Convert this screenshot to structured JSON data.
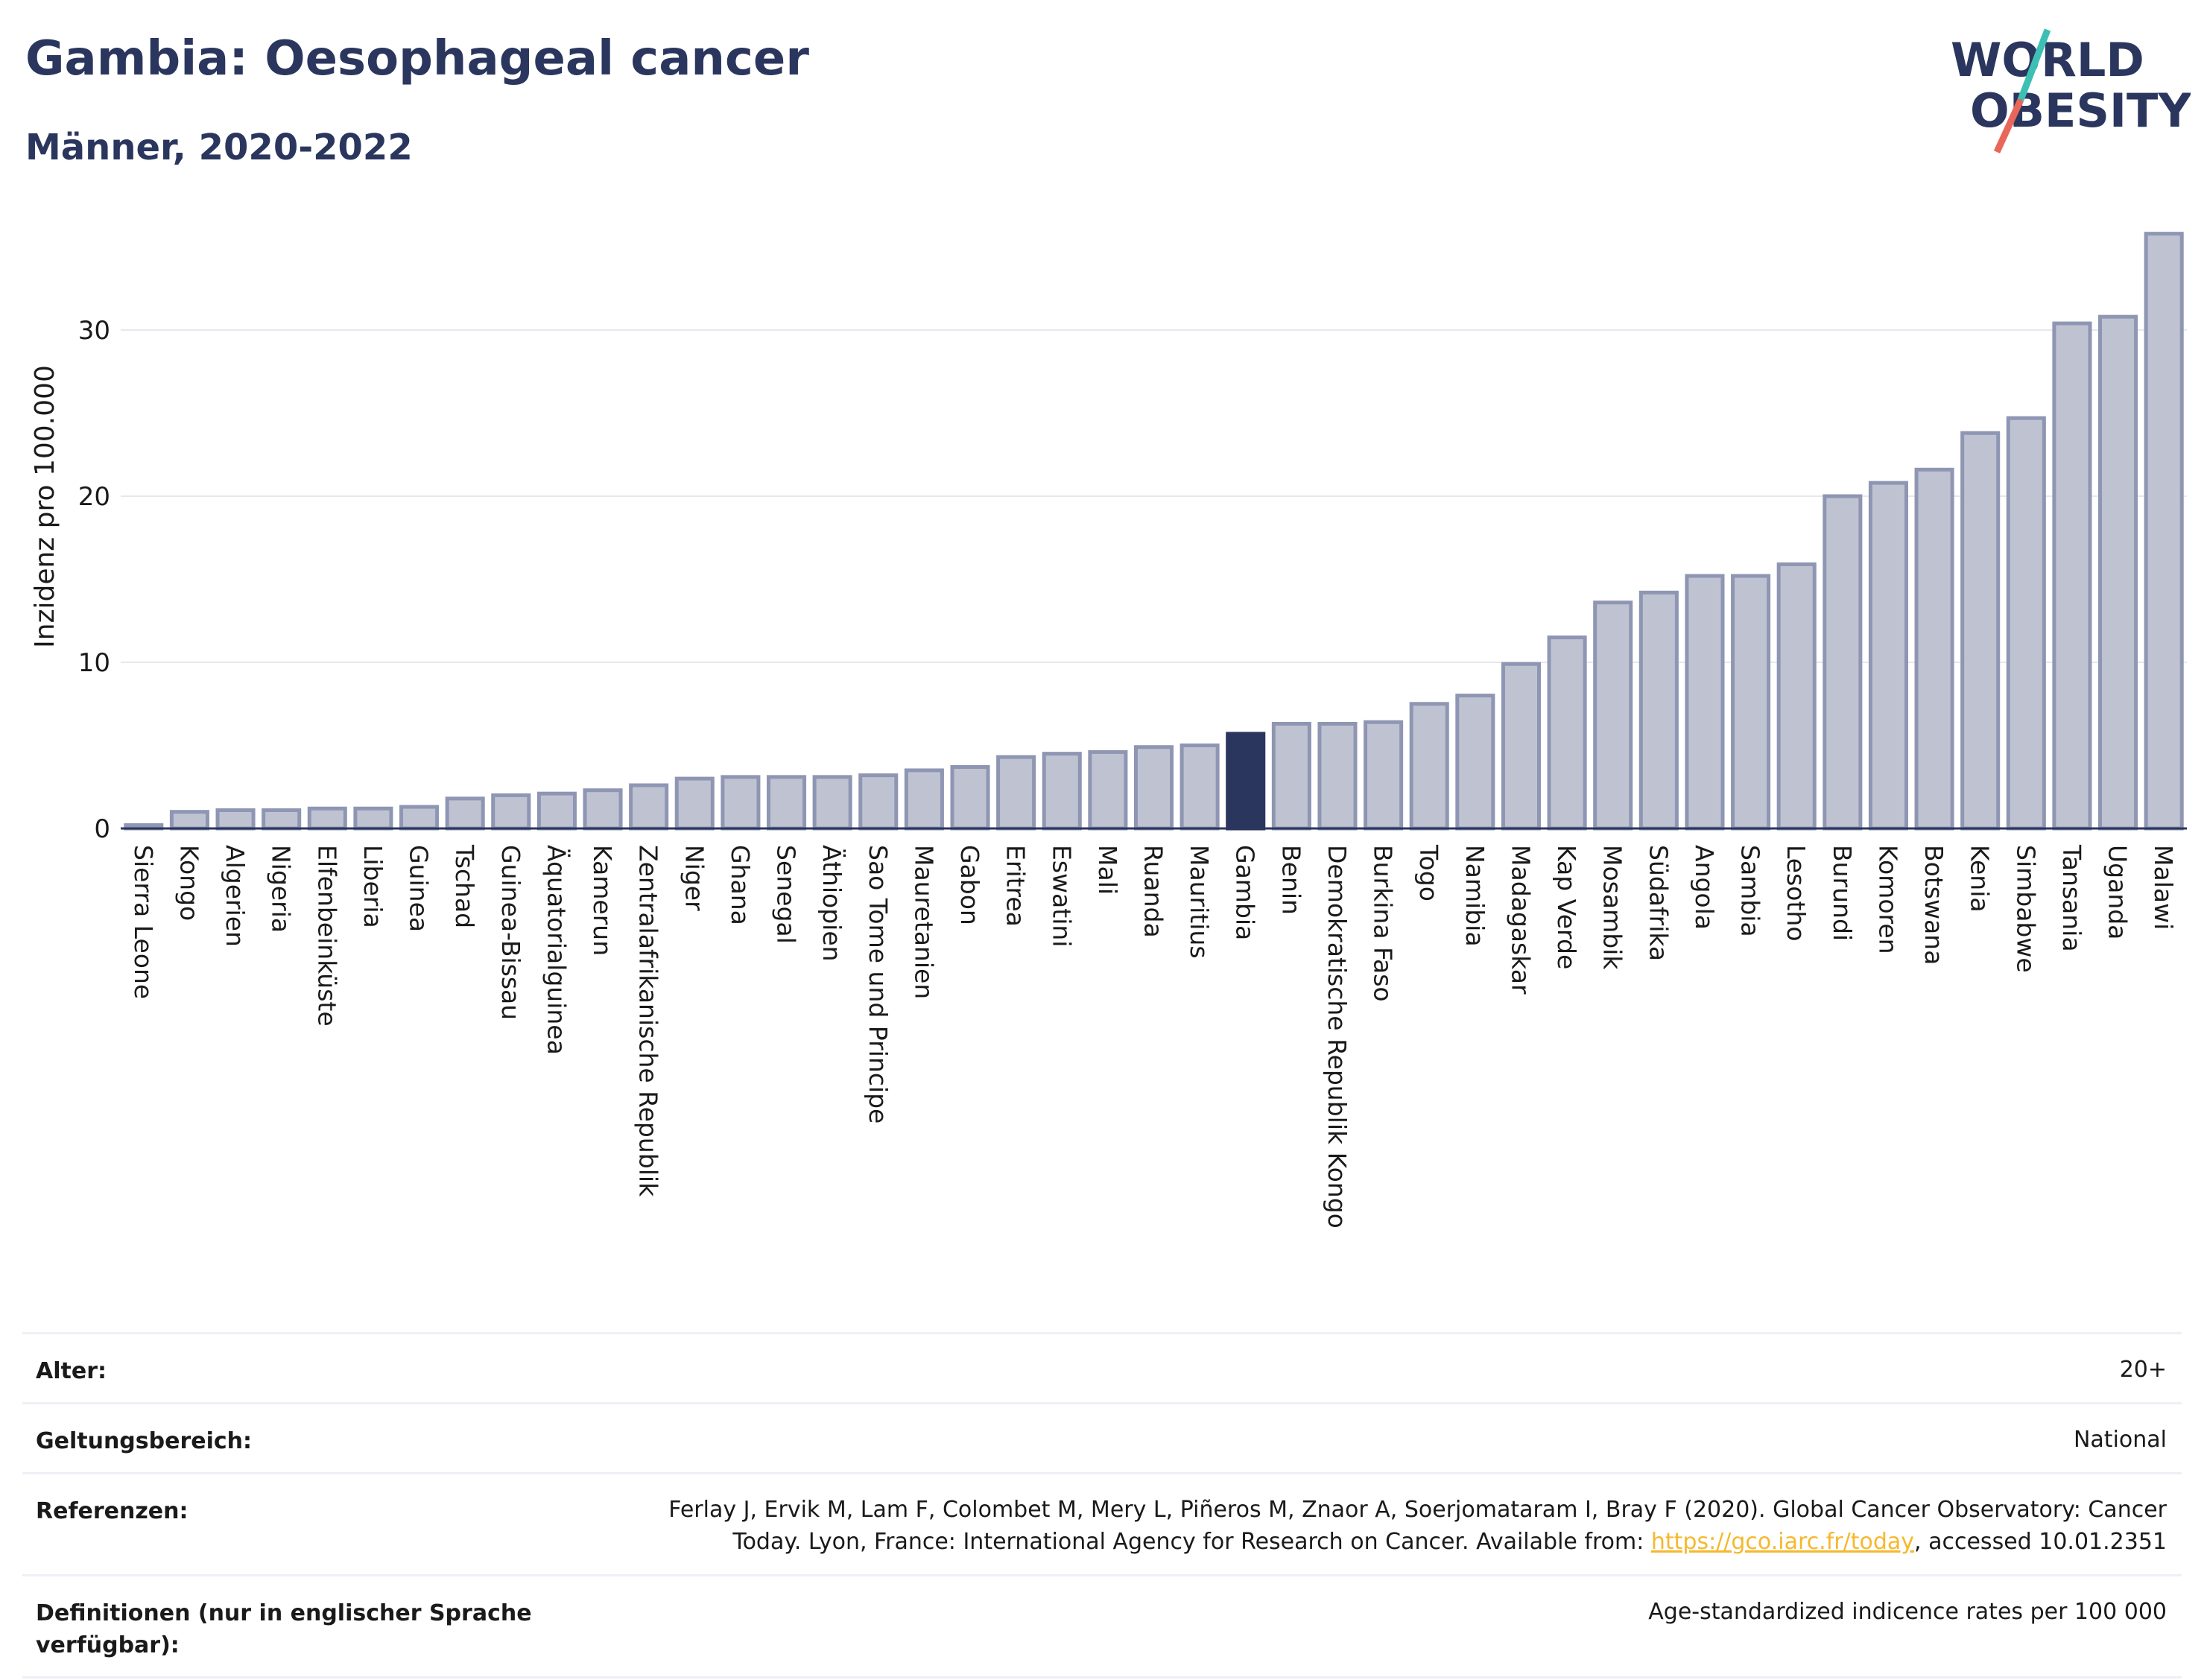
{
  "header": {
    "title": "Gambia: Oesophageal cancer",
    "subtitle": "Männer, 2020-2022"
  },
  "logo": {
    "line1": "WORLD",
    "line2": "OBESITY",
    "slash_colors": [
      "#3dbfb5",
      "#e8665a"
    ]
  },
  "colors": {
    "bar": "#bfc3d1",
    "bar_stroke": "#8e96b3",
    "highlight": "#2b365e",
    "grid": "#e6e8ee",
    "axis": "#2b365e"
  },
  "chart_data": {
    "type": "bar",
    "ylabel": "Inzidenz pro 100.000",
    "ylim": [
      0,
      36
    ],
    "yticks": [
      0,
      10,
      20,
      30
    ],
    "grid": true,
    "highlight": "Gambia",
    "categories": [
      "Sierra Leone",
      "Kongo",
      "Algerien",
      "Nigeria",
      "Elfenbeinküste",
      "Liberia",
      "Guinea",
      "Tschad",
      "Guinea-Bissau",
      "Äquatorialguinea",
      "Kamerun",
      "Zentralafrikanische Republik",
      "Niger",
      "Ghana",
      "Senegal",
      "Äthiopien",
      "Sao Tome und Principe",
      "Mauretanien",
      "Gabon",
      "Eritrea",
      "Eswatini",
      "Mali",
      "Ruanda",
      "Mauritius",
      "Gambia",
      "Benin",
      "Demokratische Republik Kongo",
      "Burkina Faso",
      "Togo",
      "Namibia",
      "Madagaskar",
      "Kap Verde",
      "Mosambik",
      "Südafrika",
      "Angola",
      "Sambia",
      "Lesotho",
      "Burundi",
      "Komoren",
      "Botswana",
      "Kenia",
      "Simbabwe",
      "Tansania",
      "Uganda",
      "Malawi"
    ],
    "values": [
      0.2,
      1.0,
      1.1,
      1.1,
      1.2,
      1.2,
      1.3,
      1.8,
      2.0,
      2.1,
      2.3,
      2.6,
      3.0,
      3.1,
      3.1,
      3.1,
      3.2,
      3.5,
      3.7,
      4.3,
      4.5,
      4.6,
      4.9,
      5.0,
      5.7,
      6.3,
      6.3,
      6.4,
      7.5,
      8.0,
      9.9,
      11.5,
      13.6,
      14.2,
      15.2,
      15.2,
      15.9,
      20.0,
      20.8,
      21.6,
      23.8,
      24.7,
      30.4,
      30.8,
      35.8
    ]
  },
  "meta": {
    "age_label": "Alter:",
    "age_value": "20+",
    "scope_label": "Geltungsbereich:",
    "scope_value": "National",
    "ref_label": "Referenzen:",
    "ref_text_1": "Ferlay J, Ervik M, Lam F, Colombet M, Mery L, Piñeros M, Znaor A, Soerjomataram I, Bray F (2020). Global Cancer Observatory: Cancer Today. Lyon, France: International Agency for Research on Cancer. Available from: ",
    "ref_link": "https://gco.iarc.fr/today",
    "ref_text_2": ", accessed 10.01.2351",
    "def_label": "Definitionen (nur in englischer Sprache verfügbar):",
    "def_value": "Age-standardized indicence rates per 100 000"
  }
}
